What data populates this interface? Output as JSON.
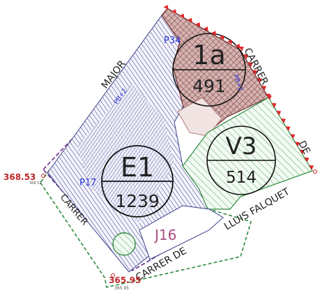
{
  "parcels": {
    "p34": {
      "code": "P34",
      "zone": "1a",
      "value": "491"
    },
    "p17": {
      "code": "P17",
      "zone": "E1",
      "value": "1239"
    },
    "v3": {
      "zone": "V3",
      "value": "514"
    },
    "j16": {
      "code": "J16"
    }
  },
  "streets": {
    "major": "MAJOR",
    "carrer_top": "CARRER",
    "de_top": "DE",
    "luis_falquet": "LLUIS FALQUET",
    "carrer_de_bottom": "CARRER DE",
    "carrer_left": "CARRER"
  },
  "elevations": {
    "left_main": "368.53",
    "left_small": "368.53",
    "bottom_main": "365.95",
    "bottom_small": "365.95"
  },
  "small_labels": {
    "pb2_top": "PB+2",
    "pb2_left": "PB+2"
  },
  "colors": {
    "residential_fill": "#c9a7a6",
    "residential_stroke": "#6b2a2a",
    "hatch_blue": "#4b4f9b",
    "green": "#2e8b3e",
    "boundary_red": "#e2272a",
    "purple": "#6b2a8c",
    "label_blue": "#2a33d6",
    "j16_pink": "#a85080"
  },
  "icons": {
    "boundary_marker": "red-triangle-icon",
    "elevation_point": "survey-point-icon"
  }
}
